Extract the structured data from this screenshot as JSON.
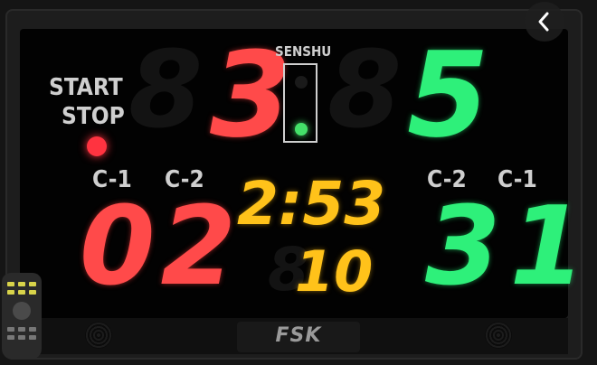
{
  "left_panel": {
    "start_label": "START",
    "stop_label": "STOP"
  },
  "senshu": {
    "label": "SENSHU"
  },
  "scores": {
    "left": "3",
    "right": "5"
  },
  "penalty_labels": {
    "left_c1": "C-1",
    "left_c2": "C-2",
    "right_c2": "C-2",
    "right_c1": "C-1"
  },
  "penalties": {
    "left": "02",
    "right": "31"
  },
  "timer": {
    "time": "2:53",
    "sub_counter": "10"
  },
  "branding": {
    "logo": "FSK"
  },
  "icons": {
    "back": "chevron-left-icon"
  },
  "colors": {
    "aka_red": "#ff4a4a",
    "ao_green": "#2ef07a",
    "timer_amber": "#ffc21a",
    "senshu_lamp": "#44e069"
  }
}
